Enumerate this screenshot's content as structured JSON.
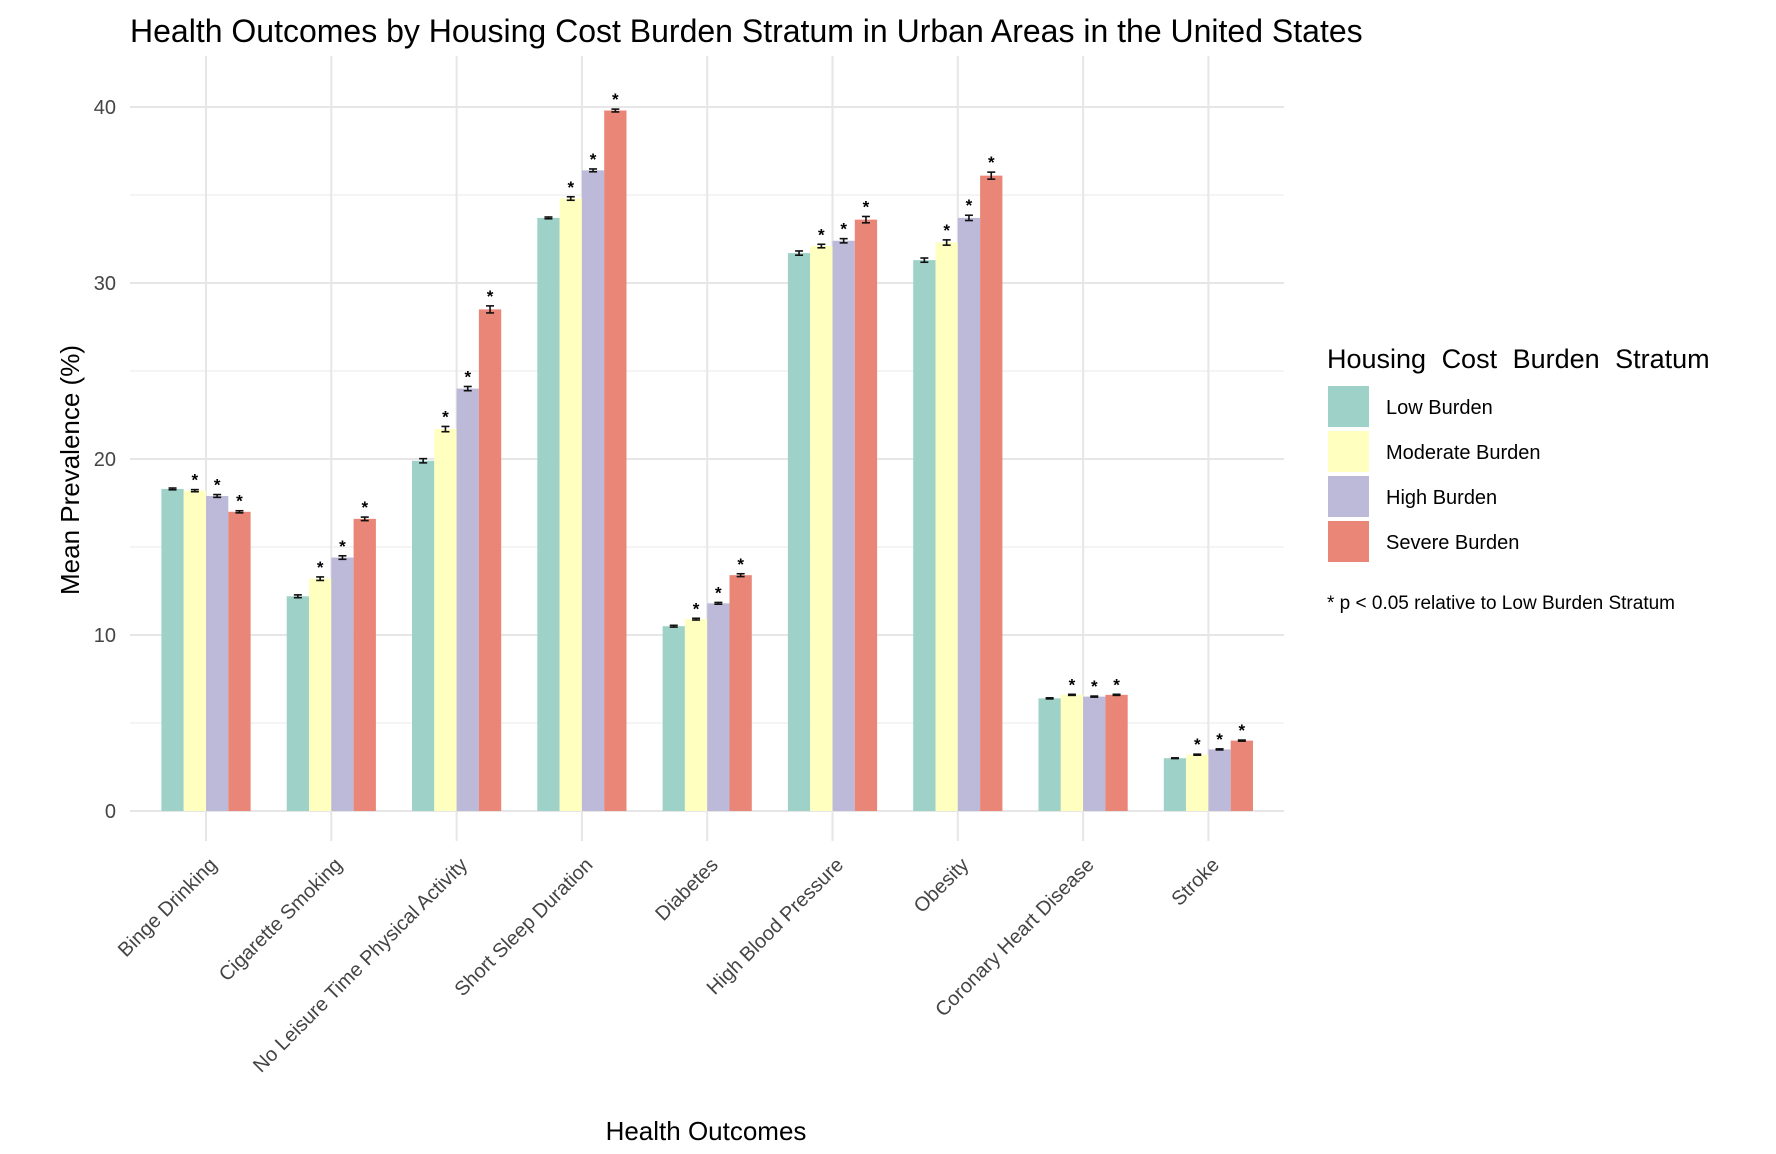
{
  "chart_data": {
    "type": "bar",
    "title": "Health Outcomes by Housing Cost Burden Stratum in Urban Areas in the United States",
    "xlabel": "Health Outcomes",
    "ylabel": "Mean Prevalence (%)",
    "ylim": [
      0,
      42
    ],
    "yticks": [
      0,
      10,
      20,
      30,
      40
    ],
    "grid": true,
    "legend_position": "right",
    "legend_title": "Housing Cost Burden Stratum",
    "note": "* p < 0.05 relative to Low Burden Stratum",
    "significance_marker": "*",
    "categories": [
      "Binge Drinking",
      "Cigarette Smoking",
      "No Leisure Time Physical Activity",
      "Short Sleep Duration",
      "Diabetes",
      "High Blood Pressure",
      "Obesity",
      "Coronary Heart Disease",
      "Stroke"
    ],
    "series": [
      {
        "name": "Low Burden",
        "color": "#9ed2c8",
        "values": [
          18.3,
          12.2,
          19.9,
          33.7,
          10.5,
          31.7,
          31.3,
          6.4,
          3.0
        ],
        "errors": [
          0.05,
          0.08,
          0.12,
          0.05,
          0.05,
          0.12,
          0.12,
          0.03,
          0.02
        ],
        "significant": [
          false,
          false,
          false,
          false,
          false,
          false,
          false,
          false,
          false
        ]
      },
      {
        "name": "Moderate Burden",
        "color": "#ffffbf",
        "values": [
          18.2,
          13.2,
          21.7,
          34.8,
          10.9,
          32.1,
          32.3,
          6.6,
          3.2
        ],
        "errors": [
          0.06,
          0.1,
          0.15,
          0.1,
          0.05,
          0.1,
          0.15,
          0.03,
          0.03
        ],
        "significant": [
          true,
          true,
          true,
          true,
          true,
          true,
          true,
          true,
          true
        ]
      },
      {
        "name": "High Burden",
        "color": "#bcbad8",
        "values": [
          17.9,
          14.4,
          24.0,
          36.4,
          11.8,
          32.4,
          33.7,
          6.5,
          3.5
        ],
        "errors": [
          0.08,
          0.1,
          0.12,
          0.08,
          0.05,
          0.12,
          0.15,
          0.03,
          0.03
        ],
        "significant": [
          true,
          true,
          true,
          true,
          true,
          true,
          true,
          true,
          true
        ]
      },
      {
        "name": "Severe Burden",
        "color": "#ea8677",
        "values": [
          17.0,
          16.6,
          28.5,
          39.8,
          13.4,
          33.6,
          36.1,
          6.6,
          4.0
        ],
        "errors": [
          0.06,
          0.1,
          0.2,
          0.08,
          0.08,
          0.18,
          0.2,
          0.03,
          0.03
        ],
        "significant": [
          true,
          true,
          true,
          true,
          true,
          true,
          true,
          true,
          true
        ]
      }
    ]
  }
}
